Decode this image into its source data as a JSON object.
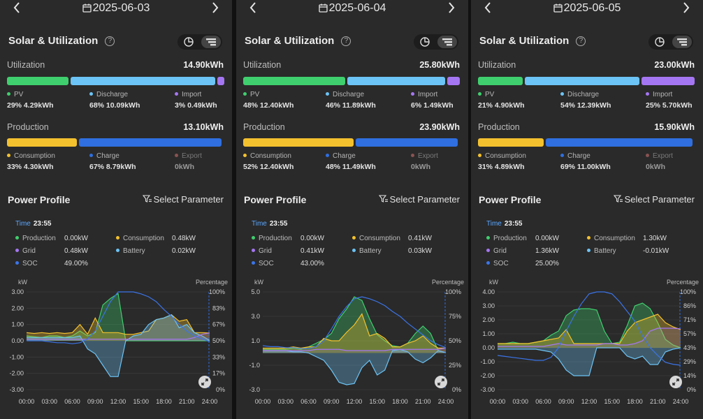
{
  "colors": {
    "pv": "#3fcf6e",
    "discharge": "#6cc3f5",
    "import": "#a576f2",
    "consumption": "#f4c12e",
    "charge": "#2f6fe0",
    "export": "#8a5252",
    "soc": "#3b74e8",
    "time_label": "#5aa6ff"
  },
  "common": {
    "section_title": "Solar & Utilization",
    "utilization_label": "Utilization",
    "production_label": "Production",
    "power_profile": "Power Profile",
    "select_parameter": "Select Parameter",
    "time_label": "Time",
    "help_icon": "?",
    "prev_icon": "chevron-left",
    "next_icon": "chevron-right",
    "legend": {
      "pv": "PV",
      "discharge": "Discharge",
      "import": "Import",
      "consumption": "Consumption",
      "charge": "Charge",
      "export": "Export"
    },
    "readout_labels": {
      "production": "Production",
      "consumption": "Consumption",
      "grid": "Grid",
      "battery": "Battery",
      "soc": "SOC"
    },
    "x_ticks": [
      "00:00",
      "03:00",
      "06:00",
      "09:00",
      "12:00",
      "15:00",
      "18:00",
      "21:00",
      "24:00"
    ],
    "left_unit": "kW",
    "right_unit": "Percentage"
  },
  "panels": [
    {
      "date": "2025-06-03",
      "utilization_total": "14.90kWh",
      "utilization_shares": [
        0.29,
        0.68,
        0.03
      ],
      "pv": "29% 4.29kWh",
      "discharge": "68% 10.09kWh",
      "import": "3% 0.49kWh",
      "production_total": "13.10kWh",
      "production_shares": [
        0.33,
        0.67,
        0.0
      ],
      "consumption": "33% 4.30kWh",
      "charge": "67% 8.79kWh",
      "export": "0kWh",
      "time": "23:55",
      "production_value": "0.00kW",
      "consumption_value": "0.48kW",
      "grid_value": "0.48kW",
      "battery_value": "0.02kW",
      "soc_value": "49.00%",
      "y_ticks": [
        "3.00",
        "2.00",
        "1.00",
        "0.00",
        "-1.00",
        "-2.00",
        "-3.00"
      ],
      "pct_ticks": [
        "100%",
        "83%",
        "67%",
        "50%",
        "33%",
        "17%",
        "0%"
      ],
      "chart_data": {
        "type": "area",
        "ylim": [
          -3,
          3
        ],
        "x": [
          "00:00",
          "01:00",
          "02:00",
          "03:00",
          "04:00",
          "05:00",
          "06:00",
          "07:00",
          "08:00",
          "09:00",
          "10:00",
          "11:00",
          "12:00",
          "13:00",
          "14:00",
          "15:00",
          "16:00",
          "17:00",
          "18:00",
          "19:00",
          "20:00",
          "21:00",
          "22:00",
          "23:00",
          "24:00"
        ],
        "series": [
          {
            "name": "Production",
            "values": [
              0.3,
              0.25,
              0.2,
              0.3,
              0.3,
              0.2,
              0.3,
              0.6,
              0.3,
              0.5,
              2.2,
              2.6,
              2.9,
              0,
              0,
              0,
              0,
              0,
              0,
              0,
              0,
              0,
              0,
              0,
              0
            ]
          },
          {
            "name": "Consumption",
            "values": [
              0.5,
              0.45,
              0.5,
              0.45,
              0.5,
              0.45,
              0.5,
              1.0,
              0.4,
              1.4,
              0.5,
              0.5,
              0.5,
              0.4,
              0.4,
              0.5,
              0.6,
              1.3,
              1.4,
              1.6,
              1.2,
              1.3,
              0.5,
              0.5,
              0.48
            ]
          },
          {
            "name": "Battery",
            "values": [
              0.2,
              0.2,
              0.2,
              0.2,
              0.2,
              0.2,
              0.2,
              0.3,
              -0.5,
              -0.8,
              -1.5,
              -2.2,
              -2.2,
              0,
              0.3,
              0.4,
              1.0,
              1.3,
              1.4,
              1.6,
              0.8,
              1.0,
              0.5,
              0.3,
              0.02
            ]
          },
          {
            "name": "Grid",
            "values": [
              0.1,
              0.1,
              0.1,
              0.1,
              0.1,
              0.1,
              0.1,
              0.1,
              0.1,
              0.1,
              0.1,
              0.1,
              0.1,
              0.1,
              0.1,
              0.1,
              0.1,
              0.1,
              0.1,
              0.1,
              0.1,
              0.1,
              0.2,
              0.4,
              0.48
            ]
          },
          {
            "name": "SOC",
            "values": [
              50,
              50,
              50,
              49,
              48,
              48,
              47,
              48,
              52,
              60,
              75,
              90,
              100,
              100,
              100,
              98,
              95,
              90,
              82,
              75,
              67,
              60,
              55,
              52,
              49
            ]
          }
        ]
      }
    },
    {
      "date": "2025-06-04",
      "utilization_total": "25.80kWh",
      "utilization_shares": [
        0.48,
        0.46,
        0.06
      ],
      "pv": "48% 12.40kWh",
      "discharge": "46% 11.89kWh",
      "import": "6% 1.49kWh",
      "production_total": "23.90kWh",
      "production_shares": [
        0.52,
        0.48,
        0.0
      ],
      "consumption": "52% 12.40kWh",
      "charge": "48% 11.49kWh",
      "export": "0kWh",
      "time": "23:55",
      "production_value": "0.00kW",
      "consumption_value": "0.41kW",
      "grid_value": "0.41kW",
      "battery_value": "0.03kW",
      "soc_value": "43.00%",
      "y_ticks": [
        "5.0",
        "3.0",
        "1.0",
        "-1.0",
        "-3.0"
      ],
      "pct_ticks": [
        "100%",
        "75%",
        "50%",
        "25%",
        "0%"
      ],
      "chart_data": {
        "type": "area",
        "ylim": [
          -3,
          5
        ],
        "x": [
          "00:00",
          "01:00",
          "02:00",
          "03:00",
          "04:00",
          "05:00",
          "06:00",
          "07:00",
          "08:00",
          "09:00",
          "10:00",
          "11:00",
          "12:00",
          "13:00",
          "14:00",
          "15:00",
          "16:00",
          "17:00",
          "18:00",
          "19:00",
          "20:00",
          "21:00",
          "22:00",
          "23:00",
          "24:00"
        ],
        "series": [
          {
            "name": "Production",
            "values": [
              0.3,
              0.3,
              0.3,
              0.3,
              0.4,
              0.3,
              0.5,
              0.8,
              1.1,
              1.6,
              2.8,
              3.6,
              4.6,
              4.3,
              2.8,
              1.5,
              1.0,
              0.6,
              0.5,
              0.8,
              1.6,
              2.2,
              1.6,
              0.2,
              0
            ]
          },
          {
            "name": "Consumption",
            "values": [
              0.4,
              0.4,
              0.4,
              0.4,
              0.5,
              0.4,
              0.5,
              0.5,
              1.2,
              1.0,
              1.0,
              1.7,
              2.3,
              3.2,
              1.4,
              1.6,
              1.2,
              0.5,
              0.5,
              0.8,
              1.0,
              1.4,
              0.8,
              0.4,
              0.41
            ]
          },
          {
            "name": "Battery",
            "values": [
              0.2,
              0.2,
              0.2,
              0.2,
              0.1,
              0.1,
              0,
              -0.3,
              -0.6,
              -1.4,
              -2.4,
              -2.6,
              -2.5,
              -1.2,
              -0.6,
              -1.8,
              -1.4,
              0.2,
              0.3,
              0.1,
              -0.5,
              -0.8,
              -0.4,
              0.2,
              0.03
            ]
          },
          {
            "name": "Grid",
            "values": [
              0.2,
              0.2,
              0.2,
              0.2,
              0.2,
              0.2,
              0.2,
              0.3,
              0.3,
              0.3,
              0.3,
              0.2,
              0.2,
              0.2,
              0.2,
              0.2,
              0.2,
              0.3,
              0.3,
              0.3,
              0.3,
              0.3,
              0.3,
              0.3,
              0.41
            ]
          },
          {
            "name": "SOC",
            "values": [
              45,
              44,
              44,
              43,
              43,
              42,
              42,
              44,
              50,
              62,
              75,
              85,
              93,
              95,
              93,
              90,
              86,
              80,
              75,
              68,
              62,
              56,
              50,
              46,
              43
            ]
          }
        ]
      }
    },
    {
      "date": "2025-06-05",
      "utilization_total": "23.00kWh",
      "utilization_shares": [
        0.21,
        0.54,
        0.25
      ],
      "pv": "21% 4.90kWh",
      "discharge": "54% 12.39kWh",
      "import": "25% 5.70kWh",
      "production_total": "15.90kWh",
      "production_shares": [
        0.31,
        0.69,
        0.0
      ],
      "consumption": "31% 4.89kWh",
      "charge": "69% 11.00kWh",
      "export": "0kWh",
      "time": "23:55",
      "production_value": "0.00kW",
      "consumption_value": "1.30kW",
      "grid_value": "1.36kW",
      "battery_value": "-0.01kW",
      "soc_value": "25.00%",
      "y_ticks": [
        "4.00",
        "3.00",
        "2.00",
        "1.00",
        "0.00",
        "-1.00",
        "-2.00",
        "-3.00"
      ],
      "pct_ticks": [
        "100%",
        "86%",
        "71%",
        "57%",
        "43%",
        "29%",
        "14%",
        "0%"
      ],
      "chart_data": {
        "type": "area",
        "ylim": [
          -3,
          4
        ],
        "x": [
          "00:00",
          "01:00",
          "02:00",
          "03:00",
          "04:00",
          "05:00",
          "06:00",
          "07:00",
          "08:00",
          "09:00",
          "10:00",
          "11:00",
          "12:00",
          "13:00",
          "14:00",
          "15:00",
          "16:00",
          "17:00",
          "18:00",
          "19:00",
          "20:00",
          "21:00",
          "22:00",
          "23:00",
          "24:00"
        ],
        "series": [
          {
            "name": "Production",
            "values": [
              0.3,
              0.3,
              0.4,
              0.3,
              0.3,
              0.4,
              0.5,
              0.9,
              1.2,
              2.3,
              2.7,
              2.8,
              2.8,
              2.7,
              1.2,
              0.3,
              0.4,
              1.6,
              3.0,
              3.2,
              2.8,
              1.8,
              0.6,
              0.2,
              0
            ]
          },
          {
            "name": "Consumption",
            "values": [
              0.3,
              0.3,
              0.3,
              0.3,
              0.3,
              0.4,
              0.5,
              0.6,
              0.7,
              1.3,
              0.3,
              0.3,
              0.3,
              0.3,
              0.3,
              0.3,
              0.3,
              1.2,
              1.8,
              2.0,
              2.2,
              2.4,
              1.8,
              1.5,
              1.3
            ]
          },
          {
            "name": "Battery",
            "values": [
              -0.1,
              -0.1,
              -0.1,
              -0.1,
              -0.1,
              -0.1,
              -0.2,
              -0.3,
              -0.8,
              -1.6,
              -2.0,
              -2.0,
              -2.0,
              0,
              0,
              0,
              0,
              -0.6,
              -0.8,
              -0.6,
              -1.2,
              -1.2,
              -0.3,
              -0.1,
              -0.01
            ]
          },
          {
            "name": "Grid",
            "values": [
              0.1,
              0.1,
              0.1,
              0.1,
              0.1,
              0.1,
              0.1,
              0.2,
              0.3,
              0.2,
              0.2,
              0.2,
              0.2,
              0.2,
              0.3,
              0.3,
              0.2,
              0.2,
              0.3,
              0.5,
              1.2,
              1.4,
              1.4,
              1.4,
              1.36
            ]
          },
          {
            "name": "SOC",
            "values": [
              35,
              34,
              33,
              32,
              31,
              30,
              30,
              33,
              43,
              60,
              75,
              88,
              98,
              100,
              100,
              98,
              90,
              80,
              70,
              55,
              43,
              35,
              28,
              26,
              25
            ]
          }
        ]
      }
    }
  ]
}
